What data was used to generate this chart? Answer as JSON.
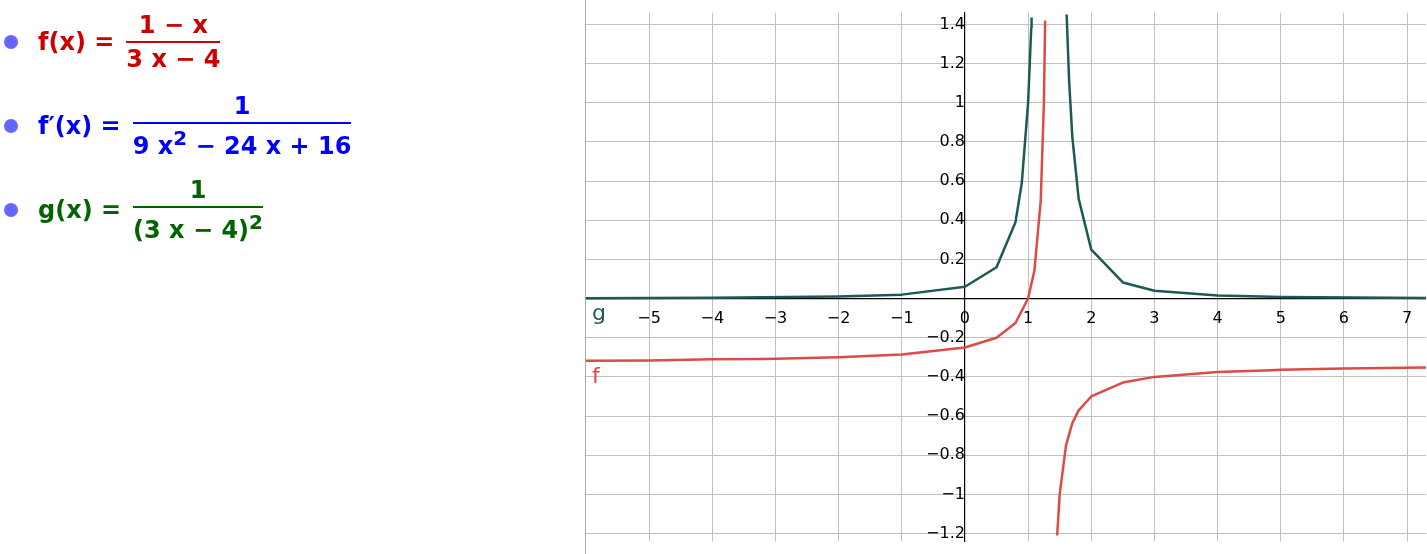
{
  "chart_data": {
    "type": "line",
    "annotations": [
      "f(x) =",
      "1 − x",
      "3 x − 4",
      "f′(x) =",
      "1",
      "9 x$^{2}$ − 24 x + 16",
      "g(x) =",
      "1",
      "(3 x − 4)$^{2}$"
    ],
    "series": [
      {
        "name": "f",
        "color": "#db4b47",
        "x": [
          -6,
          -5,
          -4,
          -3,
          -2,
          -1,
          0,
          0.5,
          0.8,
          1,
          1.1,
          1.2,
          1.25,
          1.27,
          1.333,
          1.46,
          1.5,
          1.6,
          1.7,
          1.8,
          2,
          2.5,
          3,
          4,
          5,
          6,
          7.3
        ],
        "values": [
          -0.318,
          -0.316,
          -0.31,
          -0.308,
          -0.3,
          -0.286,
          -0.25,
          -0.2,
          -0.125,
          0,
          0.143,
          0.5,
          1,
          1.42,
          null,
          -1.21,
          -1,
          -0.75,
          -0.636,
          -0.571,
          -0.5,
          -0.429,
          -0.4,
          -0.375,
          -0.364,
          -0.357,
          -0.352
        ]
      },
      {
        "name": "g",
        "color": "#1b5a55",
        "x": [
          -6,
          -4,
          -2,
          -1,
          0,
          0.5,
          0.8,
          0.9,
          1,
          1.05,
          1.055,
          1.333,
          1.61,
          1.65,
          1.7,
          1.8,
          2,
          2.5,
          3,
          4,
          5,
          7.3
        ],
        "values": [
          0.002,
          0.004,
          0.01,
          0.02,
          0.06,
          0.16,
          0.39,
          0.59,
          1,
          1.384,
          1.435,
          null,
          1.45,
          1.108,
          0.826,
          0.51,
          0.25,
          0.082,
          0.04,
          0.016,
          0.008,
          0.003
        ]
      }
    ],
    "xlim": [
      -6,
      7.3
    ],
    "xticks": [
      -5,
      -4,
      -3,
      -2,
      -1,
      0,
      1,
      2,
      3,
      4,
      5,
      6,
      7
    ],
    "ylim": [
      -1.24,
      1.46
    ],
    "yticks": [
      -1.2,
      -1,
      -0.8,
      -0.6,
      -0.4,
      -0.2,
      0.2,
      0.4,
      0.6,
      0.8,
      1,
      1.2,
      1.4
    ],
    "grid": true,
    "legend": false,
    "marker": "none",
    "line_style": "solid"
  }
}
